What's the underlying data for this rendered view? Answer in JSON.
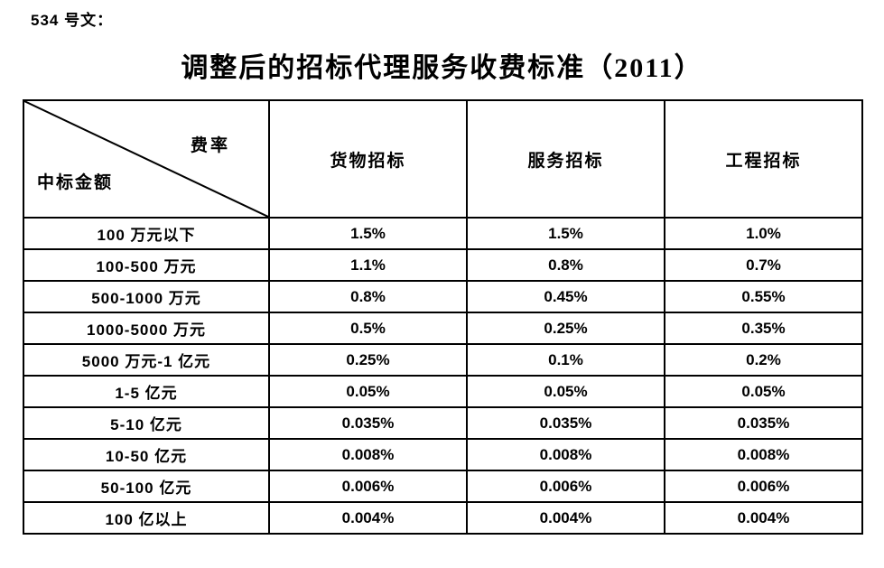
{
  "page": {
    "doc_label": "534 号文：",
    "title": "调整后的招标代理服务收费标准（2011）"
  },
  "table": {
    "corner": {
      "top_right": "费率",
      "bottom_left": "中标金额"
    },
    "columns": [
      "货物招标",
      "服务招标",
      "工程招标"
    ],
    "rows": [
      {
        "label": "100 万元以下",
        "values": [
          "1.5%",
          "1.5%",
          "1.0%"
        ]
      },
      {
        "label": "100-500 万元",
        "values": [
          "1.1%",
          "0.8%",
          "0.7%"
        ]
      },
      {
        "label": "500-1000 万元",
        "values": [
          "0.8%",
          "0.45%",
          "0.55%"
        ]
      },
      {
        "label": "1000-5000 万元",
        "values": [
          "0.5%",
          "0.25%",
          "0.35%"
        ]
      },
      {
        "label": "5000 万元-1 亿元",
        "values": [
          "0.25%",
          "0.1%",
          "0.2%"
        ]
      },
      {
        "label": "1-5 亿元",
        "values": [
          "0.05%",
          "0.05%",
          "0.05%"
        ]
      },
      {
        "label": "5-10 亿元",
        "values": [
          "0.035%",
          "0.035%",
          "0.035%"
        ]
      },
      {
        "label": "10-50 亿元",
        "values": [
          "0.008%",
          "0.008%",
          "0.008%"
        ]
      },
      {
        "label": "50-100 亿元",
        "values": [
          "0.006%",
          "0.006%",
          "0.006%"
        ]
      },
      {
        "label": "100 亿以上",
        "values": [
          "0.004%",
          "0.004%",
          "0.004%"
        ]
      }
    ]
  },
  "chart_data": {
    "type": "table",
    "title": "调整后的招标代理服务收费标准（2011）",
    "row_header": "中标金额",
    "column_header": "费率",
    "categories": [
      "100 万元以下",
      "100-500 万元",
      "500-1000 万元",
      "1000-5000 万元",
      "5000 万元-1 亿元",
      "1-5 亿元",
      "5-10 亿元",
      "10-50 亿元",
      "50-100 亿元",
      "100 亿以上"
    ],
    "series": [
      {
        "name": "货物招标",
        "values": [
          "1.5%",
          "1.1%",
          "0.8%",
          "0.5%",
          "0.25%",
          "0.05%",
          "0.035%",
          "0.008%",
          "0.006%",
          "0.004%"
        ]
      },
      {
        "name": "服务招标",
        "values": [
          "1.5%",
          "0.8%",
          "0.45%",
          "0.25%",
          "0.1%",
          "0.05%",
          "0.035%",
          "0.008%",
          "0.006%",
          "0.004%"
        ]
      },
      {
        "name": "工程招标",
        "values": [
          "1.0%",
          "0.7%",
          "0.55%",
          "0.35%",
          "0.2%",
          "0.05%",
          "0.035%",
          "0.008%",
          "0.006%",
          "0.004%"
        ]
      }
    ]
  },
  "colors": {
    "text": "#000000",
    "border": "#000000",
    "background": "#ffffff"
  }
}
